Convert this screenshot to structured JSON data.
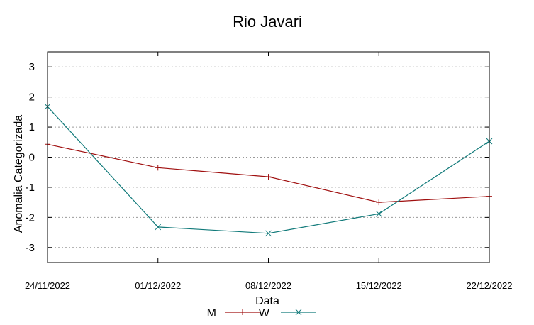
{
  "chart_data": {
    "type": "line",
    "title": "Rio Javari",
    "xlabel": "Data",
    "ylabel": "Anomalia Categorizada",
    "categories": [
      "24/11/2022",
      "01/12/2022",
      "08/12/2022",
      "15/12/2022",
      "22/12/2022"
    ],
    "x": [
      "2022-11-24",
      "2022-12-01",
      "2022-12-08",
      "2022-12-15",
      "2022-12-22"
    ],
    "ylim": [
      -3.5,
      3.5
    ],
    "yticks": [
      -3,
      -2,
      -1,
      0,
      1,
      2,
      3
    ],
    "ytick_labels": [
      "-3",
      "-2",
      "-1",
      "0",
      "1",
      "2",
      "3"
    ],
    "grid": true,
    "legend_position": "bottom",
    "series": [
      {
        "name": "M",
        "color": "#a01010",
        "marker": "plus",
        "points": [
          {
            "x": "2022-11-24",
            "y": 0.43
          },
          {
            "x": "2022-12-01",
            "y": -0.35
          },
          {
            "x": "2022-12-08",
            "y": -0.65
          },
          {
            "x": "2022-12-15",
            "y": -1.5
          },
          {
            "x": "2022-12-22",
            "y": -1.3
          }
        ]
      },
      {
        "name": "W",
        "color": "#117a7a",
        "marker": "cross",
        "points": [
          {
            "x": "2022-11-24",
            "y": 1.68
          },
          {
            "x": "2022-12-01",
            "y": -2.32
          },
          {
            "x": "2022-12-08",
            "y": -2.53
          },
          {
            "x": "2022-12-15",
            "y": -1.88
          },
          {
            "x": "2022-12-22",
            "y": 0.53
          }
        ]
      }
    ]
  }
}
